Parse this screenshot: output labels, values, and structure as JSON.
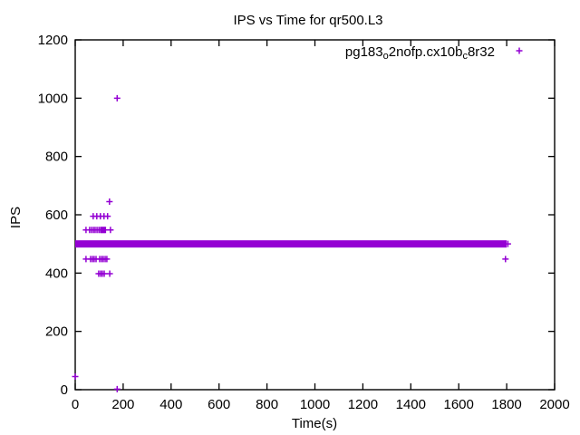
{
  "title": "IPS vs Time for qr500.L3",
  "legend": {
    "label_raw": "pg183_o2nofp.cx10b_c8r32",
    "parts": [
      {
        "t": "pg183"
      },
      {
        "s": "o"
      },
      {
        "t": "2nofp.cx10b"
      },
      {
        "s": "c"
      },
      {
        "t": "8r32"
      }
    ],
    "marker": "plus"
  },
  "colors": {
    "series": "#9400D3",
    "axis": "#000000",
    "background": "#ffffff"
  },
  "chart_data": {
    "type": "scatter",
    "title": "IPS vs Time for qr500.L3",
    "xlabel": "Time(s)",
    "ylabel": "IPS",
    "xlim": [
      0,
      2000
    ],
    "ylim": [
      0,
      1200
    ],
    "xticks": [
      0,
      200,
      400,
      600,
      800,
      1000,
      1200,
      1400,
      1600,
      1800,
      2000
    ],
    "yticks": [
      0,
      200,
      400,
      600,
      800,
      1000,
      1200
    ],
    "grid": false,
    "legend_position": "top-right-inside",
    "series": [
      {
        "name": "pg183_o2nofp.cx10b_c8r32",
        "marker": "plus",
        "color": "#9400D3",
        "band": {
          "y": 500,
          "x_start": 0,
          "x_end": 1800,
          "note": "dense overlapping samples at ~500 IPS"
        },
        "points": [
          [
            0,
            45
          ],
          [
            45,
            548
          ],
          [
            60,
            548
          ],
          [
            68,
            548
          ],
          [
            76,
            548
          ],
          [
            83,
            548
          ],
          [
            91,
            548
          ],
          [
            99,
            548
          ],
          [
            106,
            548
          ],
          [
            110,
            548
          ],
          [
            114,
            548
          ],
          [
            118,
            548
          ],
          [
            122,
            548
          ],
          [
            126,
            548
          ],
          [
            147,
            548
          ],
          [
            75,
            595
          ],
          [
            90,
            595
          ],
          [
            105,
            595
          ],
          [
            120,
            595
          ],
          [
            135,
            595
          ],
          [
            45,
            448
          ],
          [
            64,
            448
          ],
          [
            72,
            448
          ],
          [
            79,
            448
          ],
          [
            87,
            448
          ],
          [
            102,
            448
          ],
          [
            110,
            448
          ],
          [
            117,
            448
          ],
          [
            125,
            448
          ],
          [
            132,
            448
          ],
          [
            98,
            398
          ],
          [
            106,
            398
          ],
          [
            113,
            398
          ],
          [
            121,
            398
          ],
          [
            144,
            398
          ],
          [
            143,
            645
          ],
          [
            175,
            1000
          ],
          [
            175,
            2
          ],
          [
            1795,
            448
          ],
          [
            1805,
            500
          ]
        ]
      }
    ]
  }
}
